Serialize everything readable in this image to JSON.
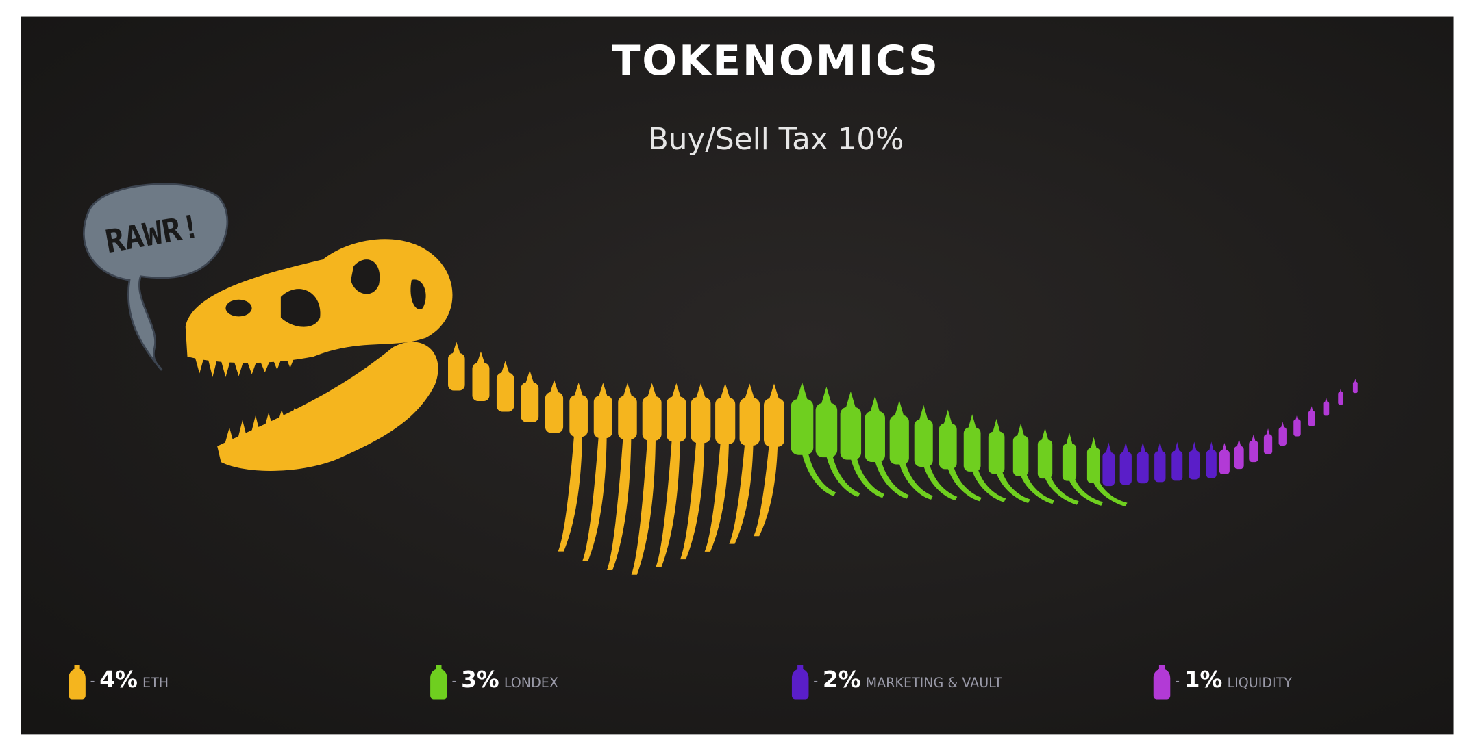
{
  "header": {
    "title": "TOKENOMICS",
    "subtitle": "Buy/Sell Tax 10%"
  },
  "speech_bubble": "RAWR!",
  "legend": [
    {
      "percent": "4%",
      "label": "ETH"
    },
    {
      "percent": "3%",
      "label": "LONDEX"
    },
    {
      "percent": "2%",
      "label": "MARKETING & VAULT"
    },
    {
      "percent": "1%",
      "label": "LIQUIDITY"
    }
  ]
}
